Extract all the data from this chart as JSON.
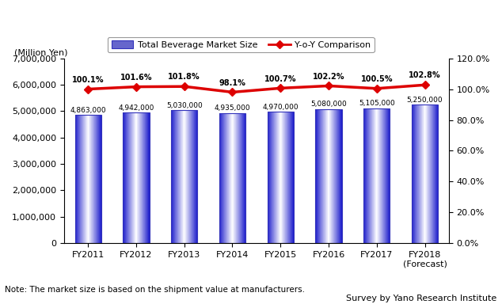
{
  "categories": [
    "FY2011",
    "FY2012",
    "FY2013",
    "FY2014",
    "FY2015",
    "FY2016",
    "FY2017",
    "FY2018\n(Forecast)"
  ],
  "bar_values": [
    4863000,
    4942000,
    5030000,
    4935000,
    4970000,
    5080000,
    5105000,
    5250000
  ],
  "bar_labels": [
    "4,863,000",
    "4,942,000",
    "5,030,000",
    "4,935,000",
    "4,970,000",
    "5,080,000",
    "5,105,000",
    "5,250,000"
  ],
  "yoy_values": [
    100.1,
    101.6,
    101.8,
    98.1,
    100.7,
    102.2,
    100.5,
    102.8
  ],
  "yoy_labels": [
    "100.1%",
    "101.6%",
    "101.8%",
    "98.1%",
    "100.7%",
    "102.2%",
    "100.5%",
    "102.8%"
  ],
  "bar_color_dark": "#2020bb",
  "bar_color_light": "#ffffff",
  "bar_edge_color": "#3333cc",
  "line_color": "#dd0000",
  "marker_color": "#dd0000",
  "left_ylabel": "(Million Yen)",
  "left_ylim": [
    0,
    7000000
  ],
  "left_yticks": [
    0,
    1000000,
    2000000,
    3000000,
    4000000,
    5000000,
    6000000,
    7000000
  ],
  "right_ylim": [
    0,
    120
  ],
  "right_yticks": [
    0,
    20,
    40,
    60,
    80,
    100,
    120
  ],
  "right_yticklabels": [
    "0.0%",
    "20.0%",
    "40.0%",
    "60.0%",
    "80.0%",
    "100.0%",
    "120.0%"
  ],
  "legend_bar_label": "Total Beverage Market Size",
  "legend_line_label": "Y-o-Y Comparison",
  "note": "Note: The market size is based on the shipment value at manufacturers.",
  "credit": "Survey by Yano Research Institute",
  "background_color": "#ffffff"
}
